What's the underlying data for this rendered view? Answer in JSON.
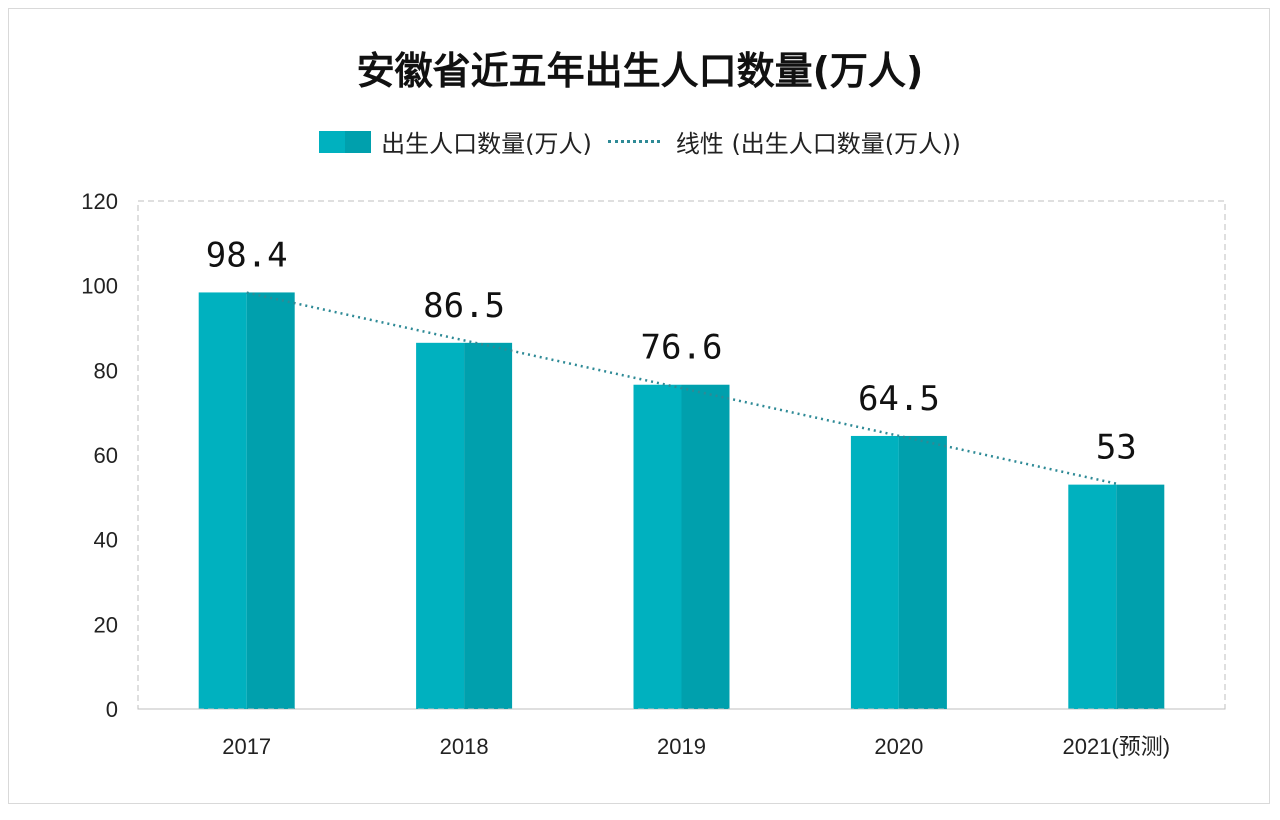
{
  "chart_data": {
    "type": "bar",
    "title": "安徽省近五年出生人口数量(万人)",
    "categories": [
      "2017",
      "2018",
      "2019",
      "2020",
      "2021(预测)"
    ],
    "series": [
      {
        "name": "出生人口数量(万人)",
        "values": [
          98.4,
          86.5,
          76.6,
          64.5,
          53
        ],
        "data_labels": [
          "98.4",
          "86.5",
          "76.6",
          "64.5",
          "53"
        ],
        "color": "#00b1bf",
        "shade_color": "#00a0ad"
      }
    ],
    "trendline": {
      "name": "线性 (出生人口数量(万人))",
      "type": "linear",
      "color": "#2e8a96",
      "style": "dotted"
    },
    "ylim": [
      0,
      120
    ],
    "yticks": [
      0,
      20,
      40,
      60,
      80,
      100,
      120
    ],
    "grid": false,
    "plot_border": "dashed",
    "legend_position": "top",
    "xlabel": "",
    "ylabel": ""
  }
}
